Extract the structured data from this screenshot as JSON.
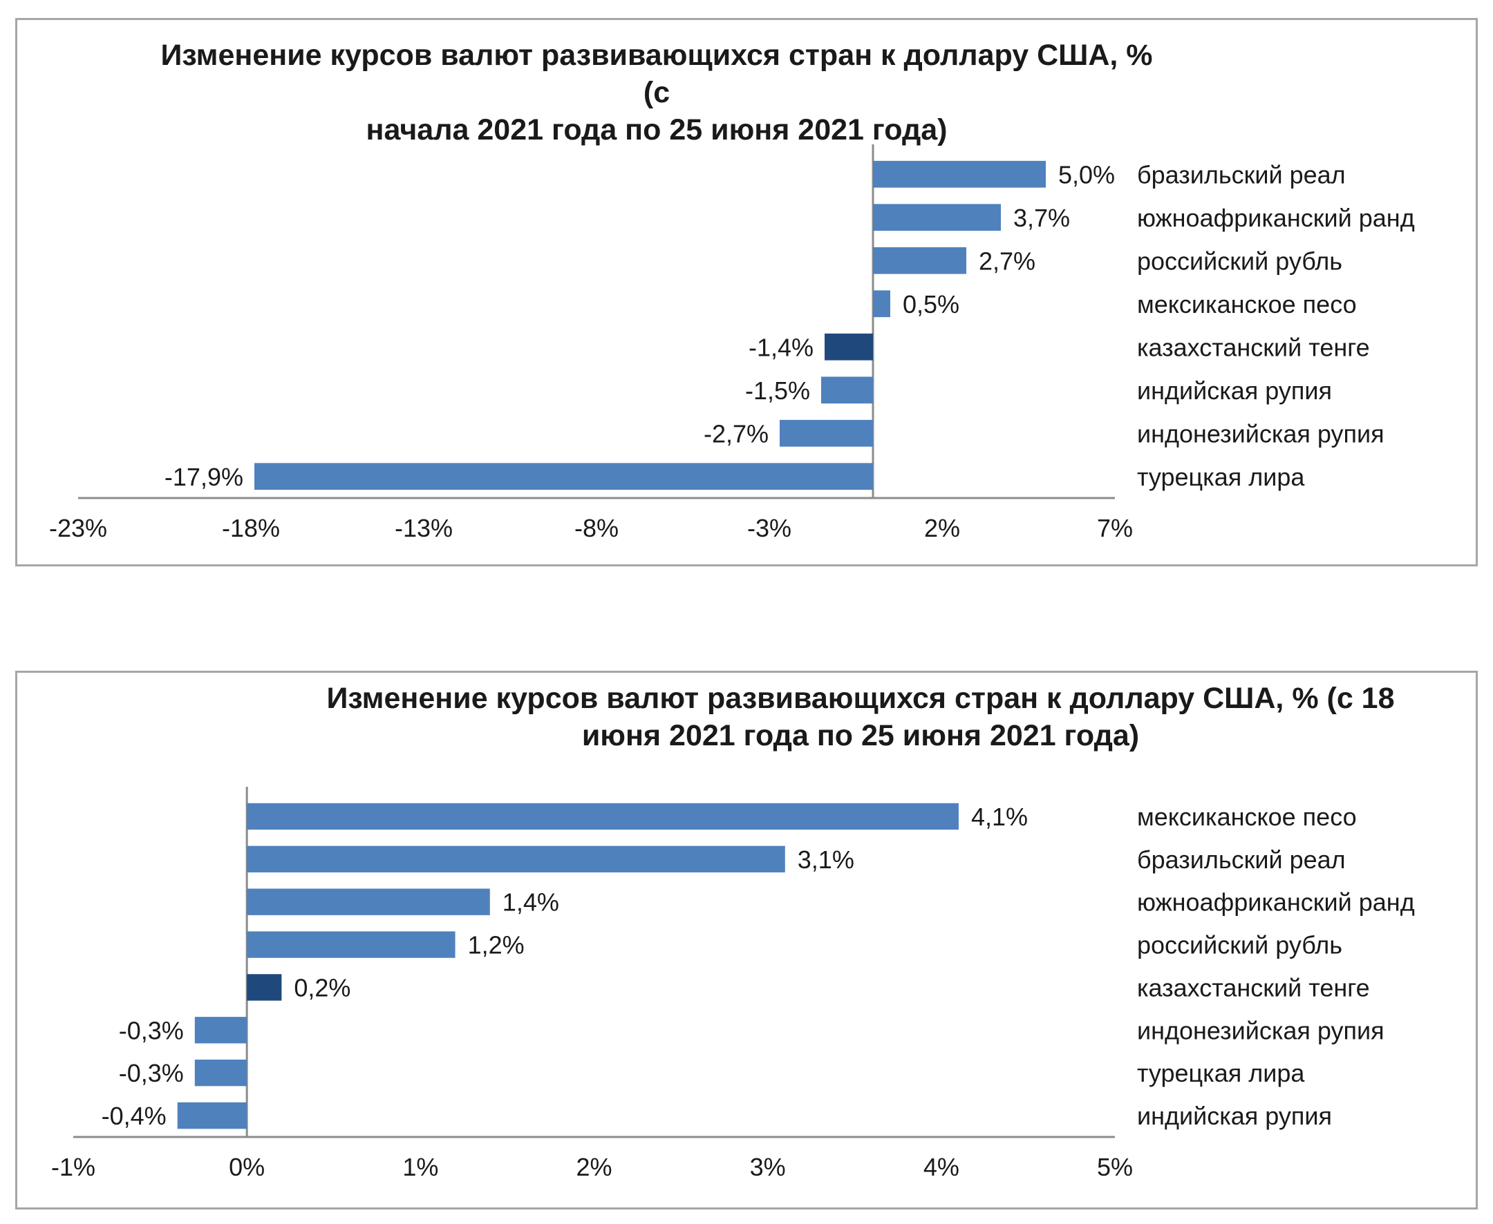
{
  "chart_data": [
    {
      "type": "bar",
      "orientation": "horizontal",
      "title_lines": [
        "Изменение курсов валют развивающихся стран к доллару США,  % (с",
        "начала 2021 года по 25 июня 2021 года)"
      ],
      "categories": [
        "бразильский реал",
        "южноафриканский ранд",
        "российский рубль",
        "мексиканское песо",
        "казахстанский тенге",
        "индийская рупия",
        "индонезийская рупия",
        "турецкая лира"
      ],
      "values": [
        5.0,
        3.7,
        2.7,
        0.5,
        -1.4,
        -1.5,
        -2.7,
        -17.9
      ],
      "value_labels": [
        "5,0%",
        "3,7%",
        "2,7%",
        "0,5%",
        "-1,4%",
        "-1,5%",
        "-2,7%",
        "-17,9%"
      ],
      "highlight": "казахстанский тенге",
      "xlim": [
        -23,
        7
      ],
      "xticks": [
        -23,
        -18,
        -13,
        -8,
        -3,
        2,
        7
      ],
      "xtick_labels": [
        "-23%",
        "-18%",
        "-13%",
        "-8%",
        "-3%",
        "2%",
        "7%"
      ],
      "grid": false,
      "colors": {
        "bar": "#4f81bd",
        "highlight": "#1f497d"
      }
    },
    {
      "type": "bar",
      "orientation": "horizontal",
      "title_lines": [
        "Изменение курсов валют развивающихся стран к доллару США,  % (с 18",
        "июня 2021 года по 25 июня 2021 года)"
      ],
      "categories": [
        "мексиканское песо",
        "бразильский реал",
        "южноафриканский ранд",
        "российский рубль",
        "казахстанский тенге",
        "индонезийская рупия",
        "турецкая лира",
        "индийская рупия"
      ],
      "values": [
        4.1,
        3.1,
        1.4,
        1.2,
        0.2,
        -0.3,
        -0.3,
        -0.4
      ],
      "value_labels": [
        "4,1%",
        "3,1%",
        "1,4%",
        "1,2%",
        "0,2%",
        "-0,3%",
        "-0,3%",
        "-0,4%"
      ],
      "highlight": "казахстанский тенге",
      "xlim": [
        -1,
        5
      ],
      "xticks": [
        -1,
        0,
        1,
        2,
        3,
        4,
        5
      ],
      "xtick_labels": [
        "-1%",
        "0%",
        "1%",
        "2%",
        "3%",
        "4%",
        "5%"
      ],
      "grid": false,
      "colors": {
        "bar": "#4f81bd",
        "highlight": "#1f497d"
      }
    }
  ]
}
